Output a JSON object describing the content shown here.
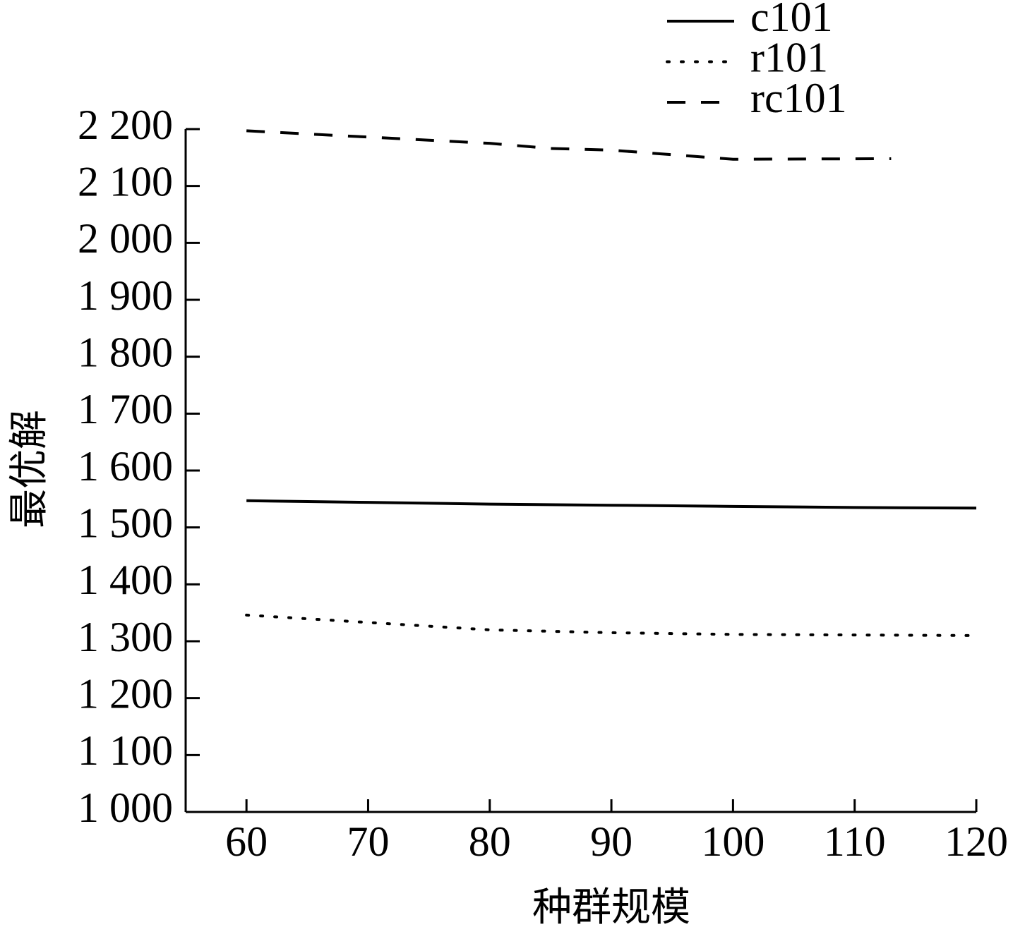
{
  "chart_data": {
    "type": "line",
    "x_label": "种群规模",
    "y_label": "最优解",
    "xlim": [
      55,
      120
    ],
    "xticks": [
      60,
      70,
      80,
      90,
      100,
      110,
      120
    ],
    "ylim": [
      1000,
      2200
    ],
    "yticks": [
      {
        "value": 1000,
        "label": "1 000"
      },
      {
        "value": 1100,
        "label": "1 100"
      },
      {
        "value": 1200,
        "label": "1 200"
      },
      {
        "value": 1300,
        "label": "1 300"
      },
      {
        "value": 1400,
        "label": "1 400"
      },
      {
        "value": 1500,
        "label": "1 500"
      },
      {
        "value": 1600,
        "label": "1 600"
      },
      {
        "value": 1700,
        "label": "1 700"
      },
      {
        "value": 1800,
        "label": "1 800"
      },
      {
        "value": 1900,
        "label": "1 900"
      },
      {
        "value": 2000,
        "label": "2 000"
      },
      {
        "value": 2100,
        "label": "2 100"
      },
      {
        "value": 2200,
        "label": "2 200"
      }
    ],
    "legend": "top-right",
    "series": [
      {
        "name": "c101",
        "color": "#000000",
        "style": "solid",
        "x": [
          60,
          70,
          80,
          90,
          100,
          110,
          120
        ],
        "values": [
          1547,
          1544,
          1541,
          1539,
          1537,
          1535,
          1534
        ]
      },
      {
        "name": "r101",
        "color": "#000000",
        "style": "dotted",
        "x": [
          60,
          70,
          80,
          90,
          100,
          110,
          120
        ],
        "values": [
          1346,
          1333,
          1320,
          1315,
          1312,
          1311,
          1310
        ]
      },
      {
        "name": "rc101",
        "color": "#000000",
        "style": "dashed",
        "x": [
          60,
          70,
          80,
          85,
          90,
          100,
          113
        ],
        "values": [
          2197,
          2186,
          2175,
          2166,
          2163,
          2147,
          2148
        ]
      }
    ]
  }
}
